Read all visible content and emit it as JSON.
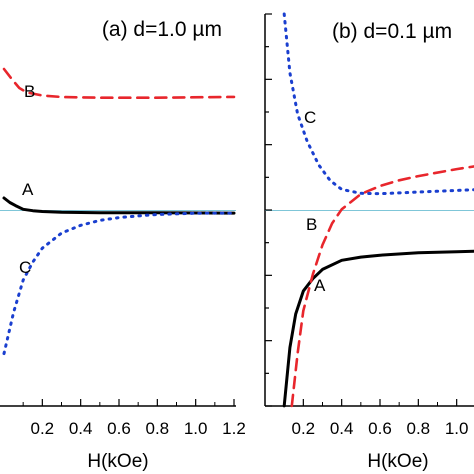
{
  "chart_data": [
    {
      "type": "line",
      "panel_label": "(a) d=1.0 µm",
      "xlabel": "H(kOe)",
      "x_ticks": [
        "0.2",
        "0.4",
        "0.6",
        "0.8",
        "1.0",
        "1.2"
      ],
      "x_tick_values": [
        0.2,
        0.4,
        0.6,
        0.8,
        1.0,
        1.2
      ],
      "xlim": [
        0.0,
        1.2
      ],
      "ylim": [
        -1.0,
        1.0
      ],
      "reference_line": 0.0,
      "series": [
        {
          "name": "A",
          "color": "#000000",
          "style": "solid",
          "points": [
            [
              0.0,
              0.0612
            ],
            [
              0.03,
              0.0385
            ],
            [
              0.06,
              0.0224
            ],
            [
              0.1,
              0.0034
            ],
            [
              0.15,
              -0.0036
            ],
            [
              0.2,
              -0.0076
            ],
            [
              0.3,
              -0.0113
            ],
            [
              0.5,
              -0.0137
            ],
            [
              0.8,
              -0.0145
            ],
            [
              1.2,
              -0.0158
            ]
          ]
        },
        {
          "name": "B",
          "color": "#e8262c",
          "style": "dashed",
          "points": [
            [
              0.0,
              0.7196
            ],
            [
              0.04,
              0.6683
            ],
            [
              0.08,
              0.6225
            ],
            [
              0.12,
              0.5995
            ],
            [
              0.2,
              0.5842
            ],
            [
              0.3,
              0.5767
            ],
            [
              0.5,
              0.5729
            ],
            [
              0.8,
              0.5729
            ],
            [
              1.2,
              0.5768
            ]
          ]
        },
        {
          "name": "C",
          "color": "#1a3fcf",
          "style": "dotted",
          "points": [
            [
              0.0,
              -0.7324
            ],
            [
              0.05,
              -0.5218
            ],
            [
              0.1,
              -0.3572
            ],
            [
              0.15,
              -0.2656
            ],
            [
              0.2,
              -0.1948
            ],
            [
              0.3,
              -0.1181
            ],
            [
              0.4,
              -0.0781
            ],
            [
              0.5,
              -0.0531
            ],
            [
              0.6,
              -0.0386
            ],
            [
              0.7,
              -0.0299
            ],
            [
              0.8,
              -0.0231
            ],
            [
              1.0,
              -0.0162
            ],
            [
              1.2,
              -0.0158
            ]
          ]
        }
      ],
      "annotations": [
        "A",
        "B",
        "C"
      ]
    },
    {
      "type": "line",
      "panel_label": "(b) d=0.1 µm",
      "xlabel": "H(kOe)",
      "x_ticks": [
        "0.2",
        "0.4",
        "0.6",
        "0.8",
        "1.0"
      ],
      "x_tick_values": [
        0.2,
        0.4,
        0.6,
        0.8,
        1.0
      ],
      "xlim": [
        0.0,
        1.2
      ],
      "ylim": [
        -1.0,
        1.0
      ],
      "reference_line": 0.0,
      "series": [
        {
          "name": "A",
          "color": "#000000",
          "style": "solid",
          "points": [
            [
              0.1,
              -0.9994
            ],
            [
              0.13,
              -0.7018
            ],
            [
              0.16,
              -0.5306
            ],
            [
              0.2,
              -0.4137
            ],
            [
              0.25,
              -0.3498
            ],
            [
              0.3,
              -0.3029
            ],
            [
              0.4,
              -0.2564
            ],
            [
              0.5,
              -0.2401
            ],
            [
              0.6,
              -0.2304
            ],
            [
              0.8,
              -0.2186
            ],
            [
              1.0,
              -0.2125
            ],
            [
              1.2,
              -0.207
            ]
          ]
        },
        {
          "name": "B",
          "color": "#e8262c",
          "style": "dashed",
          "points": [
            [
              0.14,
              -0.9994
            ],
            [
              0.17,
              -0.7327
            ],
            [
              0.2,
              -0.5144
            ],
            [
              0.25,
              -0.3274
            ],
            [
              0.3,
              -0.1781
            ],
            [
              0.35,
              -0.0682
            ],
            [
              0.4,
              0.0037
            ],
            [
              0.5,
              0.0812
            ],
            [
              0.6,
              0.1224
            ],
            [
              0.7,
              0.1514
            ],
            [
              0.8,
              0.1732
            ],
            [
              1.0,
              0.2087
            ],
            [
              1.2,
              0.2389
            ]
          ]
        },
        {
          "name": "C",
          "color": "#1a3fcf",
          "style": "dotted",
          "points": [
            [
              0.1,
              1.0
            ],
            [
              0.13,
              0.7
            ],
            [
              0.17,
              0.49
            ],
            [
              0.22,
              0.35
            ],
            [
              0.28,
              0.23
            ],
            [
              0.34,
              0.15
            ],
            [
              0.4,
              0.105
            ],
            [
              0.5,
              0.085
            ],
            [
              0.6,
              0.083
            ],
            [
              0.7,
              0.087
            ],
            [
              0.8,
              0.092
            ],
            [
              1.0,
              0.1
            ],
            [
              1.2,
              0.108
            ]
          ]
        }
      ],
      "annotations": [
        "A",
        "B",
        "C"
      ]
    }
  ]
}
